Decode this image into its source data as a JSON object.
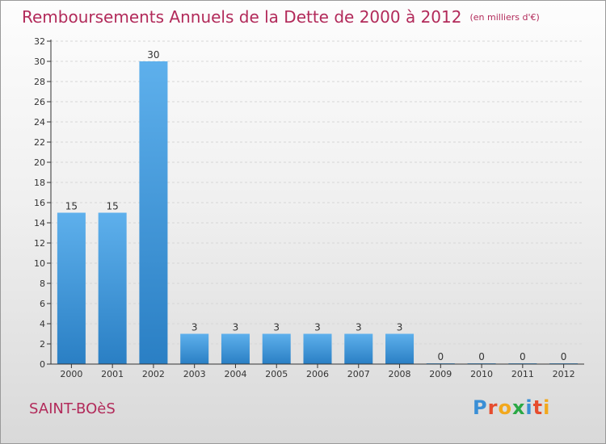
{
  "header": {
    "title": "Remboursements Annuels de la Dette de 2000 à 2012",
    "unit": "(en milliers d'€)"
  },
  "footer": {
    "commune": "SAINT-BOèS",
    "logo_letters": [
      "P",
      "r",
      "o",
      "x",
      "i",
      "t",
      "i"
    ],
    "logo_colors": [
      "#3a8fd6",
      "#e64c2e",
      "#f2a81d",
      "#2aa845",
      "#3a8fd6",
      "#e64c2e",
      "#f2a81d"
    ]
  },
  "colors": {
    "bar_top": "#5eb0ec",
    "bar_bottom": "#2a7fc4",
    "axis": "#333333",
    "grid": "#d6d6d6",
    "text": "#333333",
    "accent": "#b22a5a"
  },
  "chart_data": {
    "type": "bar",
    "title": "Remboursements Annuels de la Dette de 2000 à 2012",
    "categories": [
      "2000",
      "2001",
      "2002",
      "2003",
      "2004",
      "2005",
      "2006",
      "2007",
      "2008",
      "2009",
      "2010",
      "2011",
      "2012"
    ],
    "values": [
      15,
      15,
      30,
      3,
      3,
      3,
      3,
      3,
      3,
      0,
      0,
      0,
      0
    ],
    "data_labels": [
      "15",
      "15",
      "30",
      "3",
      "3",
      "3",
      "3",
      "3",
      "3",
      "0",
      "0",
      "0",
      "0"
    ],
    "ylim": [
      0,
      32
    ],
    "yticks": [
      0,
      2,
      4,
      6,
      8,
      10,
      12,
      14,
      16,
      18,
      20,
      22,
      24,
      26,
      28,
      30,
      32
    ],
    "grid": true,
    "xlabel": "",
    "ylabel": ""
  }
}
